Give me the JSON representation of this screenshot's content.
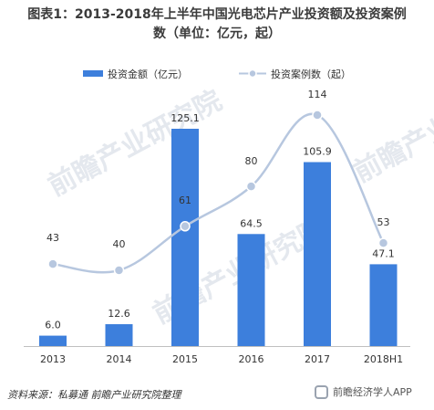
{
  "title_line1": "图表1：2013-2018年上半年中国光电芯片产业投资额及投资案例",
  "title_line2": "数（单位：亿元，起）",
  "footer": {
    "source": "资料来源：私募通   前瞻产业研究院整理",
    "brand": "前瞻经济学人APP"
  },
  "watermarks": [
    "前瞻产业研究院",
    "前瞻产业研究院",
    "前瞻产业研究院"
  ],
  "colors": {
    "bar": "#3d7fdc",
    "line": "#b7c7df",
    "marker": "#b7c7df"
  },
  "chart_data": {
    "type": "bar",
    "categories": [
      "2013",
      "2014",
      "2015",
      "2016",
      "2017",
      "2018H1"
    ],
    "series": [
      {
        "name": "投资金额（亿元）",
        "type": "bar",
        "values": [
          6.0,
          12.6,
          125.1,
          64.5,
          105.9,
          47.1
        ],
        "labels": [
          "6.0",
          "12.6",
          "125.1",
          "64.5",
          "105.9",
          "47.1"
        ]
      },
      {
        "name": "投资案例数（起）",
        "type": "line",
        "values": [
          43,
          40,
          61,
          80,
          114,
          53
        ],
        "labels": [
          "43",
          "40",
          "61",
          "80",
          "114",
          "53"
        ]
      }
    ],
    "legend_position": "top",
    "grid": false
  }
}
